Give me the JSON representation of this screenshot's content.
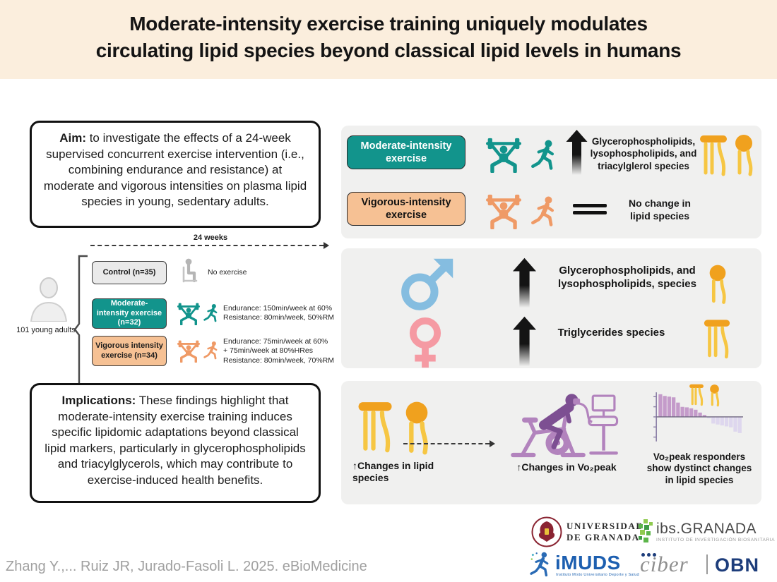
{
  "banner": {
    "title_line1": "Moderate-intensity exercise training uniquely modulates",
    "title_line2": "circulating lipid species beyond classical lipid levels in humans",
    "bg": "#fbeedd"
  },
  "aim": {
    "label": "Aim:",
    "text": " to investigate the effects of a 24-week supervised concurrent exercise intervention (i.e., combining endurance and resistance) at moderate and vigorous intensities on plasma lipid species in young, sedentary adults."
  },
  "implications": {
    "label": "Implications:",
    "text": " These findings highlight that moderate-intensity exercise training induces specific lipidomic adaptations beyond classical lipid markers, particularly in glycerophospholipids and triacylglycerols, which may contribute to exercise-induced health benefits."
  },
  "study": {
    "timeline": "24 weeks",
    "cohort": "101 young adults",
    "control": {
      "name": "Control (n=35)",
      "desc": "No exercise"
    },
    "moderate": {
      "name": "Moderate-intensity exercise (n=32)",
      "lines": [
        "Endurance: 150min/week at 60%",
        "Resistance: 80min/week, 50%RM"
      ]
    },
    "vigorous": {
      "name": "Vigorous intensity exercise (n=34)",
      "lines": [
        "Endurance: 75min/week at 60%",
        "+ 75min/week at 80%HRes",
        "Resistance: 80min/week, 70%RM"
      ]
    }
  },
  "panel1": {
    "moderate_button": "Moderate-intensity exercise",
    "moderate_outcome": "Glycerophospholipids, lysophospholipids, and triacylglerol species",
    "vigorous_button": "Vigorous-intensity exercise",
    "vigorous_outcome": "No change in lipid species"
  },
  "panel2": {
    "male_outcome": "Glycerophospholipids, and lysophospholipids, species",
    "female_outcome": "Triglycerides species"
  },
  "panel3": {
    "lipid_caption": "↑Changes in lipid species",
    "vo2_caption": "↑Changes in Vo₂peak",
    "chart_caption": "Vo₂peak responders show dystinct changes in lipid species"
  },
  "chart_data": {
    "type": "bar",
    "subtype": "waterfall",
    "title": "Vo₂peak responders show dystinct changes in lipid species",
    "x": "lipid species (ranked)",
    "values": [
      0.95,
      0.88,
      0.85,
      0.82,
      0.6,
      0.42,
      0.4,
      0.36,
      0.3,
      0.18,
      0.08,
      -0.06,
      -0.28,
      -0.32,
      -0.36,
      -0.4,
      -0.44,
      -0.62,
      -0.68
    ],
    "ylim": [
      -1,
      1
    ],
    "positive_color": "#c49bca",
    "negative_color": "#ded7ee",
    "axis_color": "#8d81a8",
    "legend": "none",
    "grid": false
  },
  "footer": {
    "citation": "Zhang Y.,... Ruiz JR, Jurado-Fasoli L. 2025. eBioMedicine",
    "logos": {
      "ugr_line1": "UNIVERSIDAD",
      "ugr_line2": "DE GRANADA",
      "ibs_name": "ibs.GRANADA",
      "ibs_subtitle": "INSTITUTO DE INVESTIGACIÓN BIOSANITARIA",
      "imuds_name": "iMUDS",
      "imuds_subtitle": "Instituto Mixto Universitario Deporte y Salud",
      "ciber_name": "ciber",
      "obn_name": "OBN"
    }
  },
  "colors": {
    "teal": "#12948c",
    "peach": "#f6c194",
    "orange_icon": "#ef9a66",
    "control_gray": "#eaeaea",
    "male_blue": "#85bde0",
    "female_pink": "#f59aa3",
    "lipid_head": "#f0a11e",
    "lipid_tail": "#f6c643",
    "purple_dark": "#7d4f92",
    "purple_light": "#b283bd",
    "panel_gray": "#f0f0ef"
  }
}
